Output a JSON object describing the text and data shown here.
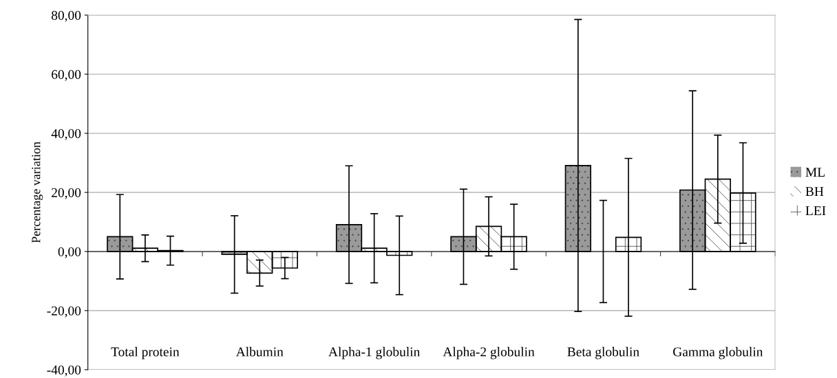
{
  "chart_data": {
    "type": "bar",
    "ylabel": "Percentage variation",
    "categories": [
      "Total protein",
      "Albumin",
      "Alpha-1 globulin",
      "Alpha-2 globulin",
      "Beta globulin",
      "Gamma globulin"
    ],
    "series": [
      {
        "name": "ML",
        "color": "#9a9a9a",
        "values": [
          5.0,
          -1.0,
          9.1,
          5.0,
          29.1,
          20.8
        ],
        "errors": [
          14.3,
          13.1,
          19.9,
          16.1,
          49.4,
          33.6
        ]
      },
      {
        "name": "BH",
        "color": "#ffffff",
        "values": [
          1.1,
          -7.3,
          1.1,
          8.5,
          0,
          24.5
        ],
        "errors": [
          4.5,
          4.4,
          11.7,
          10,
          17.3,
          14.9
        ]
      },
      {
        "name": "LEI",
        "color": "#ffffff",
        "values": [
          0.3,
          -5.6,
          -1.3,
          5.0,
          4.8,
          19.8
        ],
        "errors": [
          4.9,
          3.6,
          13.3,
          11,
          26.7,
          17
        ]
      }
    ],
    "ylim": [
      -40,
      80
    ],
    "yticks": [
      {
        "value": -40,
        "label": "-40,00"
      },
      {
        "value": -20,
        "label": "-20,00"
      },
      {
        "value": 0,
        "label": "0,00"
      },
      {
        "value": 20,
        "label": "20,00"
      },
      {
        "value": 40,
        "label": "40,00"
      },
      {
        "value": 60,
        "label": "60,00"
      },
      {
        "value": 80,
        "label": "80,00"
      }
    ],
    "grid": "y",
    "legend": "right"
  }
}
